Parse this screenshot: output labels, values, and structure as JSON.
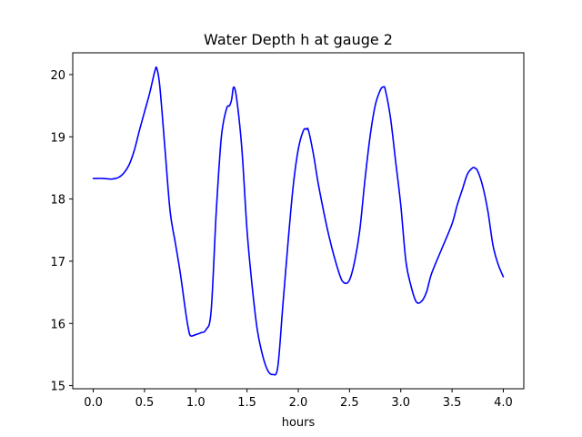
{
  "chart_data": {
    "type": "line",
    "title": "Water Depth h at gauge 2",
    "xlabel": "hours",
    "ylabel": "",
    "xlim": [
      -0.2,
      4.2
    ],
    "ylim": [
      14.95,
      20.35
    ],
    "xticks": [
      0.0,
      0.5,
      1.0,
      1.5,
      2.0,
      2.5,
      3.0,
      3.5,
      4.0
    ],
    "xtick_labels": [
      "0.0",
      "0.5",
      "1.0",
      "1.5",
      "2.0",
      "2.5",
      "3.0",
      "3.5",
      "4.0"
    ],
    "yticks": [
      15,
      16,
      17,
      18,
      19,
      20
    ],
    "ytick_labels": [
      "15",
      "16",
      "17",
      "18",
      "19",
      "20"
    ],
    "grid": false,
    "colors": {
      "series": "#0000ff",
      "axes": "#000000",
      "background": "#ffffff"
    },
    "series": [
      {
        "x": [
          0.0,
          0.05,
          0.1,
          0.18,
          0.25,
          0.3,
          0.35,
          0.4,
          0.45,
          0.5,
          0.55,
          0.6,
          0.62,
          0.65,
          0.7,
          0.75,
          0.8,
          0.85,
          0.9,
          0.93,
          0.95,
          1.0,
          1.05,
          1.1,
          1.15,
          1.2,
          1.25,
          1.3,
          1.33,
          1.35,
          1.37,
          1.4,
          1.45,
          1.5,
          1.55,
          1.6,
          1.65,
          1.7,
          1.75,
          1.8,
          1.85,
          1.9,
          1.95,
          2.0,
          2.05,
          2.08,
          2.1,
          2.15,
          2.2,
          2.3,
          2.4,
          2.45,
          2.5,
          2.55,
          2.6,
          2.65,
          2.7,
          2.75,
          2.8,
          2.83,
          2.85,
          2.9,
          2.95,
          3.0,
          3.05,
          3.1,
          3.15,
          3.2,
          3.25,
          3.3,
          3.4,
          3.5,
          3.55,
          3.6,
          3.65,
          3.7,
          3.72,
          3.75,
          3.8,
          3.85,
          3.9,
          3.95,
          4.0
        ],
        "values": [
          18.33,
          18.33,
          18.33,
          18.32,
          18.35,
          18.42,
          18.55,
          18.78,
          19.1,
          19.4,
          19.7,
          20.05,
          20.1,
          19.8,
          18.8,
          17.8,
          17.3,
          16.8,
          16.2,
          15.9,
          15.8,
          15.82,
          15.85,
          15.9,
          16.2,
          17.8,
          19.0,
          19.45,
          19.5,
          19.6,
          19.8,
          19.6,
          18.8,
          17.5,
          16.6,
          15.9,
          15.5,
          15.25,
          15.18,
          15.3,
          16.3,
          17.3,
          18.2,
          18.8,
          19.1,
          19.12,
          19.1,
          18.7,
          18.2,
          17.4,
          16.8,
          16.65,
          16.7,
          17.0,
          17.5,
          18.3,
          19.0,
          19.5,
          19.75,
          19.8,
          19.75,
          19.3,
          18.6,
          17.9,
          17.0,
          16.6,
          16.35,
          16.35,
          16.5,
          16.8,
          17.2,
          17.6,
          17.9,
          18.15,
          18.4,
          18.5,
          18.5,
          18.45,
          18.2,
          17.8,
          17.25,
          16.95,
          16.75
        ]
      }
    ]
  }
}
